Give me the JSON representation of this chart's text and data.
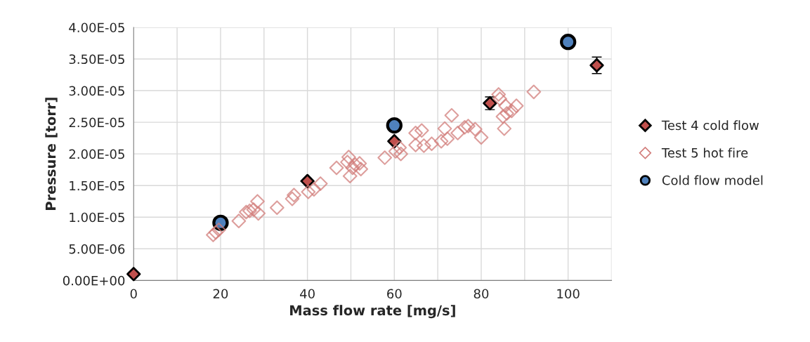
{
  "chart_data": {
    "type": "scatter",
    "xlabel": "Mass flow rate [mg/s]",
    "ylabel": "Pressure [torr]",
    "xlim": [
      0,
      110
    ],
    "ylim": [
      0,
      4e-05
    ],
    "xticks": [
      0,
      {
        "value": 10,
        "label": null
      },
      20,
      {
        "value": 30,
        "label": null
      },
      40,
      {
        "value": 50,
        "label": null
      },
      60,
      {
        "value": 70,
        "label": null
      },
      80,
      {
        "value": 90,
        "label": null
      },
      100,
      {
        "value": 110,
        "label": null
      }
    ],
    "yticks": [
      {
        "value": 0,
        "label": "0.00E+00"
      },
      {
        "value": 5e-06,
        "label": "5.00E-06"
      },
      {
        "value": 1e-05,
        "label": "1.00E-05"
      },
      {
        "value": 1.5e-05,
        "label": "1.50E-05"
      },
      {
        "value": 2e-05,
        "label": "2.00E-05"
      },
      {
        "value": 2.5e-05,
        "label": "2.50E-05"
      },
      {
        "value": 3e-05,
        "label": "3.00E-05"
      },
      {
        "value": 3.5e-05,
        "label": "3.50E-05"
      },
      {
        "value": 4e-05,
        "label": "4.00E-05"
      }
    ],
    "grid": true,
    "legend": "right",
    "series": [
      {
        "name": "Test 4 cold flow",
        "color": "#c0504d",
        "marker": "diamond",
        "x": [
          0,
          40,
          60,
          82,
          106.6
        ],
        "values": [
          1e-06,
          1.57e-05,
          2.2e-05,
          2.8e-05,
          3.4e-05
        ],
        "errors": [
          null,
          null,
          null,
          1e-06,
          1.3e-06
        ]
      },
      {
        "name": "Test 5 hot fire",
        "color": "#d27d7b",
        "marker": "diamond",
        "x": [
          18.3,
          18.9,
          19.6,
          24.2,
          25.9,
          26.7,
          27.6,
          28.5,
          28.7,
          33,
          36.5,
          36.9,
          40.2,
          41.5,
          43,
          46.7,
          49.2,
          49.5,
          49.8,
          50.4,
          51,
          52,
          52.3,
          57.8,
          60.3,
          61.5,
          61.2,
          64.9,
          66.3,
          64.9,
          66.8,
          68.6,
          70.8,
          71.6,
          72.2,
          73.2,
          74.6,
          76.2,
          77,
          78.6,
          80,
          84,
          84.3,
          85.6,
          85.9,
          87,
          88.1,
          85.3,
          85,
          92.1
        ],
        "values": [
          7.2e-06,
          7.6e-06,
          8e-06,
          9.4e-06,
          1.08e-05,
          1.1e-05,
          1.12e-05,
          1.25e-05,
          1.06e-05,
          1.15e-05,
          1.29e-05,
          1.35e-05,
          1.4e-05,
          1.44e-05,
          1.53e-05,
          1.78e-05,
          1.87e-05,
          1.95e-05,
          1.65e-05,
          1.78e-05,
          1.83e-05,
          1.85e-05,
          1.76e-05,
          1.94e-05,
          2.04e-05,
          2e-05,
          2.1e-05,
          2.33e-05,
          2.37e-05,
          2.14e-05,
          2.13e-05,
          2.16e-05,
          2.2e-05,
          2.4e-05,
          2.24e-05,
          2.61e-05,
          2.33e-05,
          2.42e-05,
          2.44e-05,
          2.39e-05,
          2.26e-05,
          2.94e-05,
          2.87e-05,
          2.76e-05,
          2.64e-05,
          2.68e-05,
          2.76e-05,
          2.4e-05,
          2.59e-05,
          2.98e-05
        ]
      },
      {
        "name": "Cold flow model",
        "color": "#4f81bd",
        "marker": "circle",
        "x": [
          20,
          60,
          100
        ],
        "values": [
          9.1e-06,
          2.45e-05,
          3.77e-05
        ]
      }
    ]
  }
}
